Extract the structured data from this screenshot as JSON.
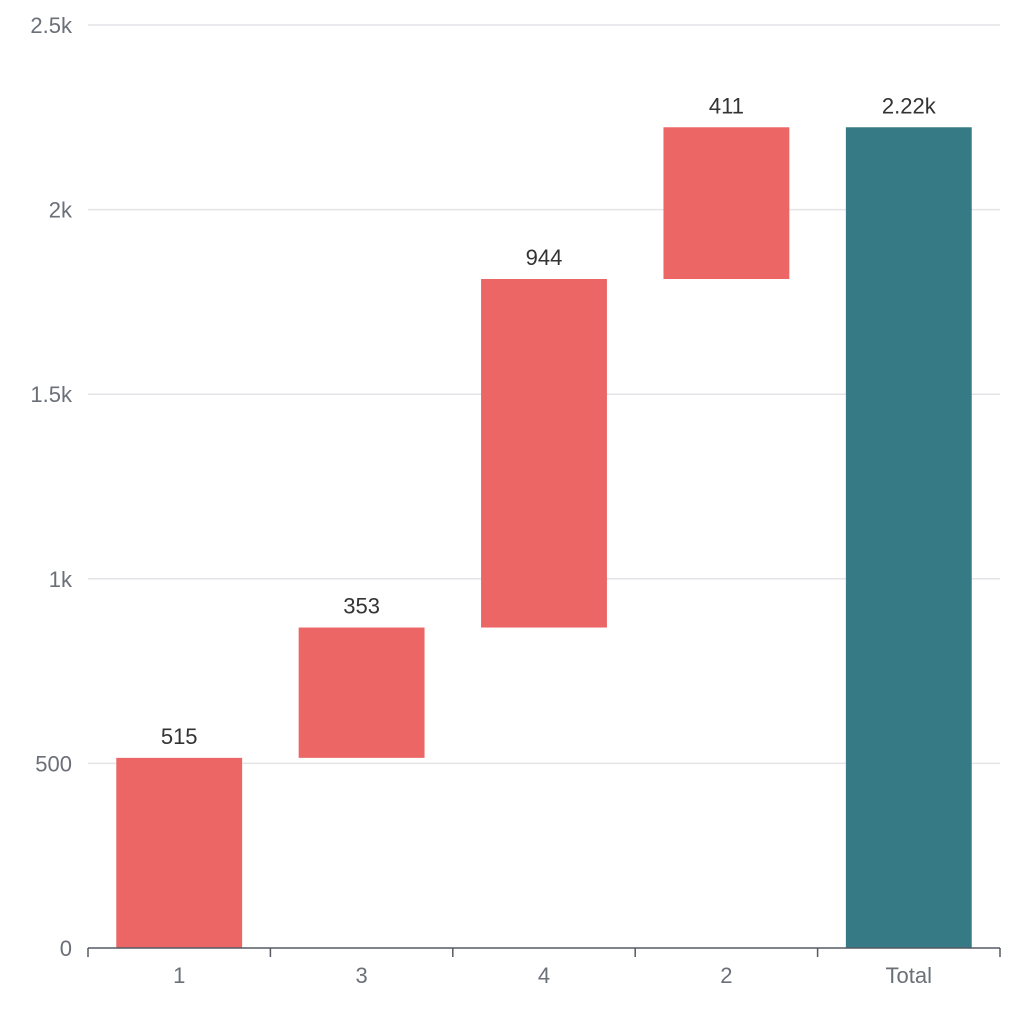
{
  "chart_data": {
    "type": "bar",
    "subtype": "waterfall",
    "title": "",
    "xlabel": "",
    "ylabel": "",
    "categories": [
      "1",
      "3",
      "4",
      "2",
      "Total"
    ],
    "values": [
      515,
      353,
      944,
      411,
      2223
    ],
    "bar_kinds": [
      "delta",
      "delta",
      "delta",
      "delta",
      "total"
    ],
    "data_labels": [
      "515",
      "353",
      "944",
      "411",
      "2.22k"
    ],
    "ylim": [
      0,
      2500
    ],
    "y_ticks": [
      0,
      500,
      1000,
      1500,
      2000,
      2500
    ],
    "y_tick_labels": [
      "0",
      "500",
      "1k",
      "1.5k",
      "2k",
      "2.5k"
    ],
    "grid": true,
    "legend": "none",
    "colors": {
      "delta": "#ec6666",
      "total": "#357a84"
    }
  }
}
